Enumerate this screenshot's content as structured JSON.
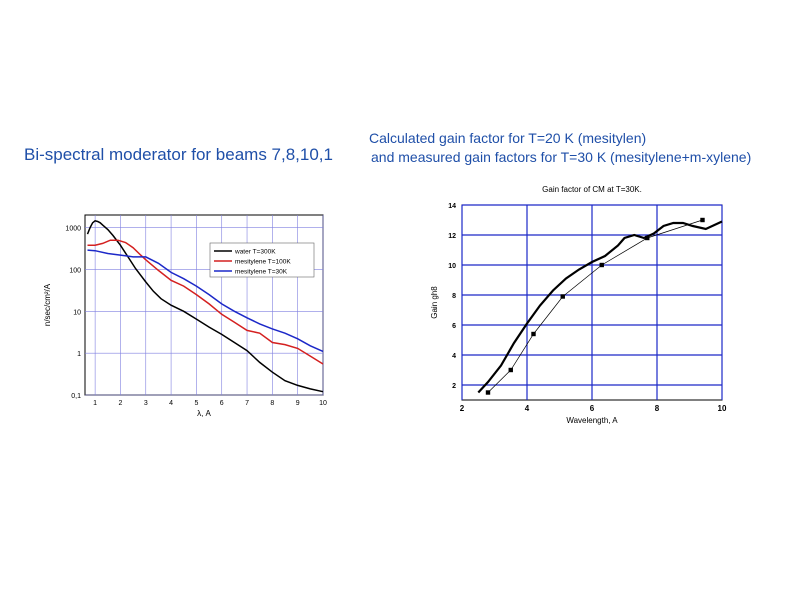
{
  "slide": {
    "title": "Bi-spectral moderator for beams 7,8,10,1",
    "caption_line1": "Calculated gain factor for T=20 K (mesitylen)",
    "caption_line2": "and measured gain factors for T=30 K (mesitylene+m-xylene)"
  },
  "chart_data": [
    {
      "type": "line",
      "title": "",
      "xlabel": "λ, A",
      "ylabel": "n/sec/cm²/A",
      "xlim": [
        0.6,
        10
      ],
      "ylim": [
        0.1,
        2000
      ],
      "y_scale": "log",
      "grid": true,
      "legend_position": "top-right",
      "x_ticks": [
        "1",
        "2",
        "3",
        "4",
        "5",
        "6",
        "7",
        "8",
        "9",
        "10"
      ],
      "y_ticks": [
        "0,1",
        "1",
        "10",
        "100",
        "1000"
      ],
      "series": [
        {
          "name": "water T=300K",
          "color": "#000000",
          "x": [
            0.7,
            0.8,
            0.9,
            1.0,
            1.1,
            1.2,
            1.3,
            1.5,
            1.7,
            2.0,
            2.3,
            2.6,
            3.0,
            3.3,
            3.6,
            4.0,
            4.5,
            5.0,
            5.5,
            6.0,
            6.5,
            7.0,
            7.5,
            8.0,
            8.5,
            9.0,
            9.5,
            10.0
          ],
          "y": [
            700,
            1000,
            1300,
            1450,
            1400,
            1300,
            1150,
            900,
            650,
            380,
            200,
            105,
            50,
            30,
            20,
            14,
            10,
            6.5,
            4.2,
            2.8,
            1.8,
            1.15,
            0.6,
            0.35,
            0.22,
            0.17,
            0.14,
            0.12
          ]
        },
        {
          "name": "mesitylene T=100K",
          "color": "#d42020",
          "x": [
            0.7,
            1.0,
            1.3,
            1.6,
            1.9,
            2.2,
            2.5,
            2.8,
            3.0,
            3.5,
            4.0,
            4.5,
            5.0,
            5.5,
            6.0,
            6.5,
            7.0,
            7.5,
            8.0,
            8.5,
            9.0,
            9.5,
            10.0
          ],
          "y": [
            380,
            380,
            420,
            500,
            500,
            440,
            330,
            220,
            170,
            95,
            55,
            40,
            25,
            15,
            8.5,
            5.5,
            3.5,
            3.0,
            1.8,
            1.6,
            1.3,
            0.85,
            0.55
          ]
        },
        {
          "name": "mesitylene T=30K",
          "color": "#1c28c8",
          "x": [
            0.7,
            1.0,
            1.5,
            2.0,
            2.5,
            3.0,
            3.5,
            4.0,
            4.5,
            5.0,
            5.5,
            6.0,
            6.5,
            7.0,
            7.5,
            8.0,
            8.5,
            9.0,
            9.5,
            10.0
          ],
          "y": [
            290,
            280,
            240,
            220,
            200,
            200,
            140,
            85,
            60,
            40,
            25,
            15,
            10,
            7,
            5,
            3.8,
            3.0,
            2.2,
            1.5,
            1.1
          ]
        }
      ]
    },
    {
      "type": "line",
      "title": "Gain factor of CM at T=30K.",
      "xlabel": "Wavelength, A",
      "ylabel": "Gain gh8",
      "xlim": [
        2,
        10
      ],
      "ylim": [
        1,
        14
      ],
      "grid": true,
      "x_ticks": [
        "2",
        "4",
        "6",
        "8",
        "10"
      ],
      "y_ticks": [
        "2",
        "4",
        "6",
        "8",
        "10",
        "12",
        "14"
      ],
      "series": [
        {
          "name": "",
          "style": "thick solid",
          "color": "#000000",
          "x": [
            2.5,
            2.8,
            3.2,
            3.6,
            4.0,
            4.4,
            4.8,
            5.2,
            5.6,
            6.0,
            6.4,
            6.8,
            7.0,
            7.3,
            7.6,
            7.9,
            8.2,
            8.5,
            8.8,
            9.1,
            9.5,
            10.0
          ],
          "y": [
            1.5,
            2.2,
            3.3,
            4.8,
            6.1,
            7.3,
            8.3,
            9.1,
            9.7,
            10.2,
            10.6,
            11.3,
            11.8,
            12.0,
            11.8,
            12.1,
            12.6,
            12.8,
            12.8,
            12.6,
            12.4,
            12.9
          ]
        },
        {
          "name": "",
          "style": "thin with square markers",
          "color": "#000000",
          "x": [
            2.8,
            3.5,
            4.2,
            5.1,
            6.3,
            7.7,
            9.4
          ],
          "y": [
            1.5,
            3.0,
            5.4,
            7.9,
            10.0,
            11.8,
            13.0
          ]
        }
      ]
    }
  ]
}
